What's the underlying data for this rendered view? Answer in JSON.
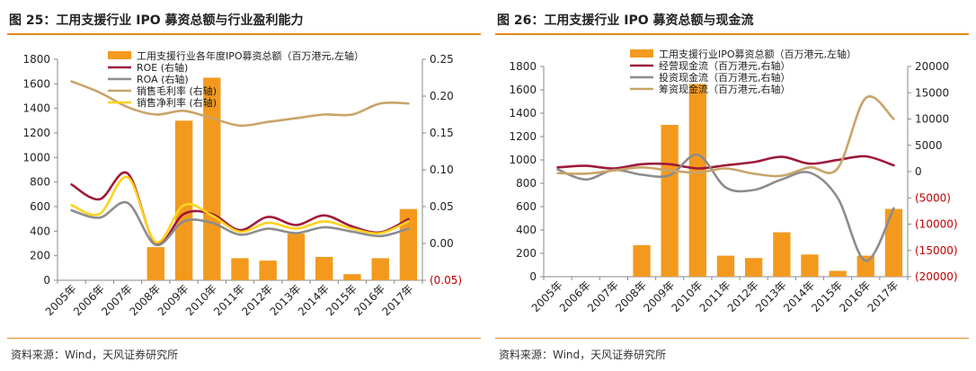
{
  "charts": [
    {
      "title": "图 25：工用支援行业 IPO 募资总额与行业盈利能力",
      "source": "资料来源：Wind，天风证券研究所"
    },
    {
      "title": "图 26：工用支援行业 IPO 募资总额与现金流",
      "source": "资料来源：Wind，天风证券研究所"
    }
  ],
  "chart_data": [
    {
      "type": "bar",
      "categories": [
        "2005年",
        "2006年",
        "2007年",
        "2008年",
        "2009年",
        "2010年",
        "2011年",
        "2012年",
        "2013年",
        "2014年",
        "2015年",
        "2016年",
        "2017年"
      ],
      "left_axis": {
        "ylim": [
          0,
          1800
        ],
        "ticks": [
          "0",
          "200",
          "400",
          "600",
          "800",
          "1000",
          "1200",
          "1400",
          "1600",
          "1800"
        ]
      },
      "right_axis": {
        "ylim": [
          -0.05,
          0.25
        ],
        "ticks": [
          "(0.05)",
          "0.00",
          "0.05",
          "0.10",
          "0.15",
          "0.20",
          "0.25"
        ]
      },
      "bars": {
        "name": "工用支援行业各年度IPO募资总额（百万港元,左轴）",
        "axis": "left",
        "color": "#F39A1E",
        "values": [
          0,
          0,
          0,
          270,
          1300,
          1650,
          180,
          160,
          380,
          190,
          50,
          180,
          580
        ]
      },
      "series": [
        {
          "name": "ROE (右轴)",
          "axis": "right",
          "color": "#9E1A3A",
          "values": [
            0.08,
            0.06,
            0.095,
            0.0,
            0.04,
            0.04,
            0.018,
            0.036,
            0.025,
            0.038,
            0.023,
            0.015,
            0.033
          ]
        },
        {
          "name": "ROA (右轴)",
          "axis": "right",
          "color": "#8C8C8C",
          "values": [
            0.045,
            0.035,
            0.055,
            -0.002,
            0.03,
            0.028,
            0.012,
            0.02,
            0.014,
            0.022,
            0.016,
            0.01,
            0.02
          ]
        },
        {
          "name": "销售毛利率 (右轴)",
          "axis": "right",
          "color": "#C8A46A",
          "values": [
            0.22,
            0.205,
            0.185,
            0.175,
            0.18,
            0.17,
            0.16,
            0.165,
            0.17,
            0.175,
            0.175,
            0.19,
            0.19
          ]
        },
        {
          "name": "销售净利率 (右轴)",
          "axis": "right",
          "color": "#FFD21A",
          "values": [
            0.052,
            0.04,
            0.09,
            0.002,
            0.052,
            0.038,
            0.016,
            0.028,
            0.02,
            0.03,
            0.02,
            0.014,
            0.03
          ]
        }
      ]
    },
    {
      "type": "bar",
      "categories": [
        "2005年",
        "2006年",
        "2007年",
        "2008年",
        "2009年",
        "2010年",
        "2011年",
        "2012年",
        "2013年",
        "2014年",
        "2015年",
        "2016年",
        "2017年"
      ],
      "left_axis": {
        "ylim": [
          0,
          1800
        ],
        "ticks": [
          "0",
          "200",
          "400",
          "600",
          "800",
          "1000",
          "1200",
          "1400",
          "1600",
          "1800"
        ]
      },
      "right_axis": {
        "ylim": [
          -20000,
          20000
        ],
        "ticks": [
          "(20000)",
          "(15000)",
          "(10000)",
          "(5000)",
          "0",
          "5000",
          "10000",
          "15000",
          "20000"
        ]
      },
      "bars": {
        "name": "工用支援行业IPO募资总额（百万港元,左轴）",
        "axis": "left",
        "color": "#F39A1E",
        "values": [
          0,
          0,
          0,
          270,
          1300,
          1650,
          180,
          160,
          380,
          190,
          50,
          180,
          580
        ]
      },
      "series": [
        {
          "name": "经营现金流（百万港元,右轴）",
          "axis": "right",
          "color": "#9E1A3A",
          "values": [
            800,
            1100,
            600,
            1400,
            1400,
            600,
            1200,
            1800,
            2800,
            1500,
            2200,
            2900,
            1200
          ]
        },
        {
          "name": "投资现金流（百万港元,右轴）",
          "axis": "right",
          "color": "#8C8C8C",
          "values": [
            400,
            -1500,
            300,
            -600,
            -700,
            3200,
            -3000,
            -3500,
            -1500,
            -200,
            -5000,
            -17000,
            -7000
          ]
        },
        {
          "name": "筹资现金流（百万港元,右轴）",
          "axis": "right",
          "color": "#C8A46A",
          "values": [
            -300,
            -400,
            200,
            800,
            200,
            -200,
            600,
            -400,
            -800,
            800,
            600,
            14000,
            10000
          ]
        }
      ]
    }
  ]
}
